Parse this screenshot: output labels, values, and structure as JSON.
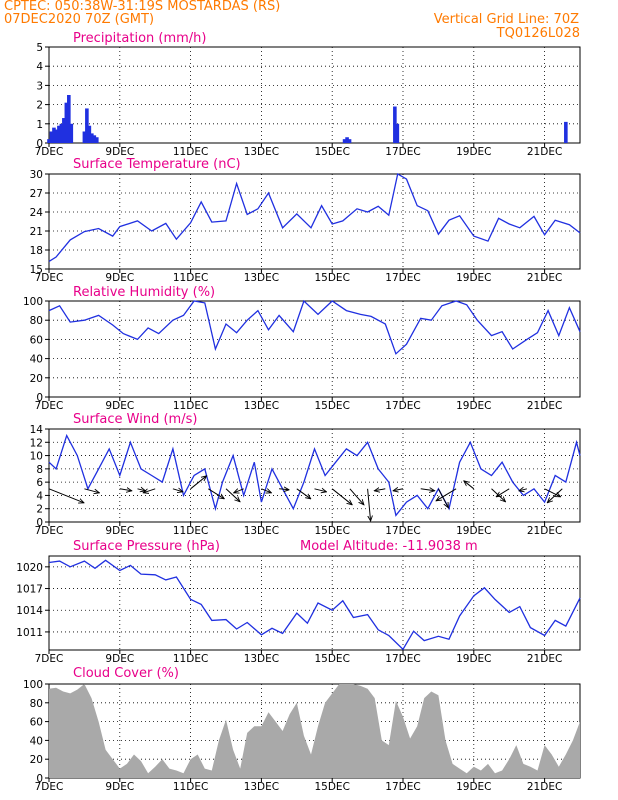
{
  "header": {
    "station": "CPTEC:   050:38W-31:19S   MOSTARDAS (RS)",
    "run": "07DEC2020 70Z (GMT)",
    "grid_line": "Vertical Grid Line: 70Z",
    "code": "TQ0126L028"
  },
  "colors": {
    "header": "#ff7a00",
    "title": "#e8008a",
    "series": "#2030e0",
    "cloud": "#a9a9a9",
    "grid": "#000000"
  },
  "x_axis": {
    "labels": [
      "7DEC",
      "9DEC",
      "11DEC",
      "13DEC",
      "15DEC",
      "17DEC",
      "19DEC",
      "21DEC"
    ],
    "range_days": [
      7,
      22
    ]
  },
  "chart_data": [
    {
      "type": "bar",
      "title": "Precipitation (mm/h)",
      "ylim": [
        0,
        5
      ],
      "yticks": [
        "0",
        "1",
        "2",
        "3",
        "4",
        "5"
      ],
      "x": [
        7.0,
        7.07,
        7.14,
        7.21,
        7.28,
        7.35,
        7.42,
        7.49,
        7.56,
        7.63,
        8.0,
        8.07,
        8.14,
        8.21,
        8.28,
        8.35,
        15.35,
        15.42,
        15.49,
        16.77,
        16.84,
        21.6
      ],
      "values": [
        0.2,
        0.6,
        0.8,
        0.7,
        0.9,
        1.0,
        1.3,
        2.1,
        2.5,
        1.0,
        0.6,
        1.8,
        0.9,
        0.5,
        0.4,
        0.3,
        0.2,
        0.3,
        0.2,
        1.9,
        1.0,
        1.1
      ]
    },
    {
      "type": "line",
      "title": "Surface Temperature (nC)",
      "ylim": [
        15,
        30
      ],
      "yticks": [
        "15",
        "18",
        "21",
        "24",
        "27",
        "30"
      ],
      "x": [
        7.0,
        7.2,
        7.6,
        8.0,
        8.4,
        8.8,
        9.0,
        9.5,
        9.9,
        10.3,
        10.6,
        11.0,
        11.3,
        11.6,
        12.0,
        12.3,
        12.6,
        12.9,
        13.2,
        13.6,
        14.0,
        14.4,
        14.7,
        15.0,
        15.3,
        15.7,
        16.0,
        16.3,
        16.6,
        16.85,
        17.1,
        17.4,
        17.7,
        18.0,
        18.3,
        18.6,
        19.0,
        19.4,
        19.7,
        20.0,
        20.3,
        20.7,
        21.0,
        21.3,
        21.7,
        22.0
      ],
      "values": [
        16.2,
        16.9,
        19.6,
        20.9,
        21.4,
        20.2,
        21.7,
        22.6,
        21.0,
        22.2,
        19.7,
        22.3,
        25.6,
        22.4,
        22.6,
        28.5,
        23.6,
        24.5,
        27.0,
        21.5,
        23.7,
        21.5,
        25.0,
        22.1,
        22.6,
        24.5,
        24.0,
        24.9,
        23.5,
        30.0,
        29.2,
        25.0,
        24.2,
        20.5,
        22.7,
        23.4,
        20.2,
        19.4,
        23.0,
        22.1,
        21.5,
        23.3,
        20.4,
        22.7,
        22.0,
        20.7
      ]
    },
    {
      "type": "line",
      "title": "Relative Humidity (%)",
      "ylim": [
        0,
        100
      ],
      "yticks": [
        "0",
        "20",
        "40",
        "60",
        "80",
        "100"
      ],
      "x": [
        7.0,
        7.3,
        7.6,
        8.0,
        8.4,
        8.8,
        9.1,
        9.5,
        9.8,
        10.1,
        10.5,
        10.8,
        11.1,
        11.4,
        11.7,
        12.0,
        12.3,
        12.6,
        12.9,
        13.2,
        13.5,
        13.9,
        14.2,
        14.6,
        15.0,
        15.4,
        15.8,
        16.1,
        16.5,
        16.8,
        17.1,
        17.5,
        17.8,
        18.1,
        18.5,
        18.8,
        19.1,
        19.5,
        19.8,
        20.1,
        20.5,
        20.8,
        21.1,
        21.4,
        21.7,
        22.0
      ],
      "values": [
        90,
        95,
        78,
        80,
        85,
        75,
        66,
        60,
        72,
        66,
        80,
        85,
        100,
        98,
        50,
        76,
        67,
        80,
        90,
        70,
        85,
        68,
        100,
        86,
        100,
        90,
        86,
        84,
        76,
        45,
        55,
        82,
        80,
        95,
        100,
        96,
        80,
        64,
        68,
        50,
        60,
        67,
        90,
        64,
        93,
        68
      ]
    },
    {
      "type": "line",
      "title": "Surface Wind (m/s)",
      "ylim": [
        0,
        14
      ],
      "yticks": [
        "0",
        "2",
        "4",
        "6",
        "8",
        "10",
        "12",
        "14"
      ],
      "x": [
        7.0,
        7.2,
        7.5,
        7.8,
        8.1,
        8.4,
        8.7,
        9.0,
        9.3,
        9.6,
        9.9,
        10.2,
        10.5,
        10.8,
        11.1,
        11.4,
        11.7,
        11.9,
        12.2,
        12.5,
        12.8,
        13.0,
        13.3,
        13.6,
        13.9,
        14.2,
        14.5,
        14.8,
        15.1,
        15.4,
        15.7,
        16.0,
        16.3,
        16.6,
        16.8,
        17.1,
        17.4,
        17.7,
        18.0,
        18.3,
        18.6,
        18.9,
        19.2,
        19.5,
        19.8,
        20.1,
        20.4,
        20.7,
        21.0,
        21.3,
        21.6,
        21.9,
        22.0
      ],
      "values": [
        9.0,
        8.0,
        13.0,
        10.0,
        5.0,
        8.0,
        11.0,
        7.0,
        12.0,
        8.0,
        7.0,
        6.0,
        11.0,
        4.0,
        7.0,
        8.0,
        2.0,
        6.0,
        10.0,
        4.0,
        9.0,
        3.0,
        8.0,
        5.0,
        2.0,
        6.0,
        11.0,
        7.0,
        9.0,
        11.0,
        10.0,
        12.0,
        8.0,
        6.0,
        1.0,
        3.0,
        4.0,
        2.0,
        5.0,
        2.0,
        9.0,
        12.0,
        8.0,
        7.0,
        9.0,
        6.0,
        4.0,
        5.0,
        3.0,
        7.0,
        6.0,
        12.0,
        10.0
      ],
      "vectors": [
        {
          "x": 7.0,
          "u": 3.5,
          "v": 1.4
        },
        {
          "x": 8.0,
          "u": 1.5,
          "v": 0.4
        },
        {
          "x": 9.0,
          "u": 1.2,
          "v": 0.2
        },
        {
          "x": 9.5,
          "u": 0.8,
          "v": 0.2
        },
        {
          "x": 10.0,
          "u": -1.2,
          "v": 0.4
        },
        {
          "x": 10.5,
          "u": 1.0,
          "v": 0.3
        },
        {
          "x": 11.0,
          "u": 1.6,
          "v": -1.3
        },
        {
          "x": 11.5,
          "u": 1.6,
          "v": 1.0
        },
        {
          "x": 12.0,
          "u": 1.4,
          "v": 1.3
        },
        {
          "x": 12.5,
          "u": -1.0,
          "v": 0.4
        },
        {
          "x": 13.0,
          "u": 1.0,
          "v": 0.4
        },
        {
          "x": 13.5,
          "u": 1.0,
          "v": 0.1
        },
        {
          "x": 14.0,
          "u": 1.4,
          "v": 1.0
        },
        {
          "x": 14.5,
          "u": 1.2,
          "v": 0.3
        },
        {
          "x": 15.0,
          "u": 2.0,
          "v": 1.6
        },
        {
          "x": 15.5,
          "u": 1.4,
          "v": 1.6
        },
        {
          "x": 16.0,
          "u": 0.3,
          "v": 3.3
        },
        {
          "x": 16.5,
          "u": -1.1,
          "v": 0.2
        },
        {
          "x": 17.0,
          "u": -1.0,
          "v": 0.2
        },
        {
          "x": 17.5,
          "u": 1.4,
          "v": 0.2
        },
        {
          "x": 18.0,
          "u": 1.0,
          "v": 1.9
        },
        {
          "x": 18.5,
          "u": -2.0,
          "v": 1.2
        },
        {
          "x": 19.0,
          "u": -1.0,
          "v": -0.8
        },
        {
          "x": 19.5,
          "u": 1.4,
          "v": 1.3
        },
        {
          "x": 20.0,
          "u": -1.3,
          "v": 0.8
        },
        {
          "x": 20.5,
          "u": -0.8,
          "v": 0.2
        },
        {
          "x": 21.0,
          "u": 1.6,
          "v": 0.8
        },
        {
          "x": 21.5,
          "u": -1.5,
          "v": 1.4
        }
      ]
    },
    {
      "type": "line",
      "title": "Surface Pressure (hPa)",
      "subtitle": "Model Altitude: -11.9038 m",
      "ylim": [
        1008.5,
        1021.5
      ],
      "yticks": [
        "1011",
        "1014",
        "1017",
        "1020"
      ],
      "x": [
        7.0,
        7.3,
        7.6,
        8.0,
        8.3,
        8.6,
        9.0,
        9.3,
        9.6,
        10.0,
        10.3,
        10.6,
        11.0,
        11.3,
        11.6,
        12.0,
        12.3,
        12.6,
        13.0,
        13.3,
        13.6,
        14.0,
        14.3,
        14.6,
        15.0,
        15.3,
        15.6,
        16.0,
        16.3,
        16.6,
        17.0,
        17.3,
        17.6,
        18.0,
        18.3,
        18.6,
        19.0,
        19.3,
        19.6,
        20.0,
        20.3,
        20.6,
        21.0,
        21.3,
        21.6,
        22.0
      ],
      "values": [
        1020.6,
        1020.8,
        1020.0,
        1020.8,
        1019.8,
        1020.9,
        1019.5,
        1020.2,
        1019.0,
        1018.9,
        1018.2,
        1018.6,
        1015.5,
        1014.8,
        1012.6,
        1012.7,
        1011.4,
        1012.3,
        1010.6,
        1011.5,
        1010.8,
        1013.6,
        1012.2,
        1015.0,
        1014.0,
        1015.3,
        1013.0,
        1013.4,
        1011.3,
        1010.5,
        1008.6,
        1011.1,
        1009.8,
        1010.4,
        1010.0,
        1013.2,
        1016.0,
        1017.1,
        1015.5,
        1013.7,
        1014.5,
        1011.6,
        1010.5,
        1012.6,
        1011.8,
        1015.7
      ]
    },
    {
      "type": "area",
      "title": "Cloud Cover (%)",
      "ylim": [
        0,
        100
      ],
      "yticks": [
        "0",
        "20",
        "40",
        "60",
        "80",
        "100"
      ],
      "x": [
        7.0,
        7.2,
        7.4,
        7.6,
        7.8,
        8.0,
        8.2,
        8.4,
        8.6,
        8.8,
        9.0,
        9.2,
        9.4,
        9.6,
        9.8,
        10.0,
        10.2,
        10.4,
        10.6,
        10.8,
        11.0,
        11.2,
        11.4,
        11.6,
        11.8,
        12.0,
        12.2,
        12.4,
        12.6,
        12.8,
        13.0,
        13.2,
        13.4,
        13.6,
        13.8,
        14.0,
        14.2,
        14.4,
        14.6,
        14.8,
        15.0,
        15.2,
        15.4,
        15.6,
        15.8,
        16.0,
        16.2,
        16.4,
        16.6,
        16.8,
        17.0,
        17.2,
        17.4,
        17.6,
        17.8,
        18.0,
        18.2,
        18.4,
        18.6,
        18.8,
        19.0,
        19.2,
        19.4,
        19.6,
        19.8,
        20.0,
        20.2,
        20.4,
        20.6,
        20.8,
        21.0,
        21.2,
        21.4,
        21.6,
        21.8,
        22.0
      ],
      "values": [
        95,
        96,
        92,
        90,
        94,
        100,
        85,
        60,
        30,
        20,
        10,
        15,
        25,
        18,
        5,
        12,
        20,
        10,
        8,
        5,
        20,
        25,
        10,
        8,
        40,
        62,
        30,
        10,
        48,
        55,
        55,
        70,
        60,
        50,
        68,
        80,
        45,
        25,
        55,
        80,
        90,
        100,
        100,
        100,
        98,
        95,
        85,
        40,
        35,
        82,
        65,
        42,
        55,
        85,
        92,
        88,
        40,
        15,
        10,
        5,
        12,
        8,
        15,
        5,
        8,
        20,
        35,
        15,
        12,
        8,
        35,
        25,
        12,
        25,
        40,
        60
      ]
    }
  ]
}
